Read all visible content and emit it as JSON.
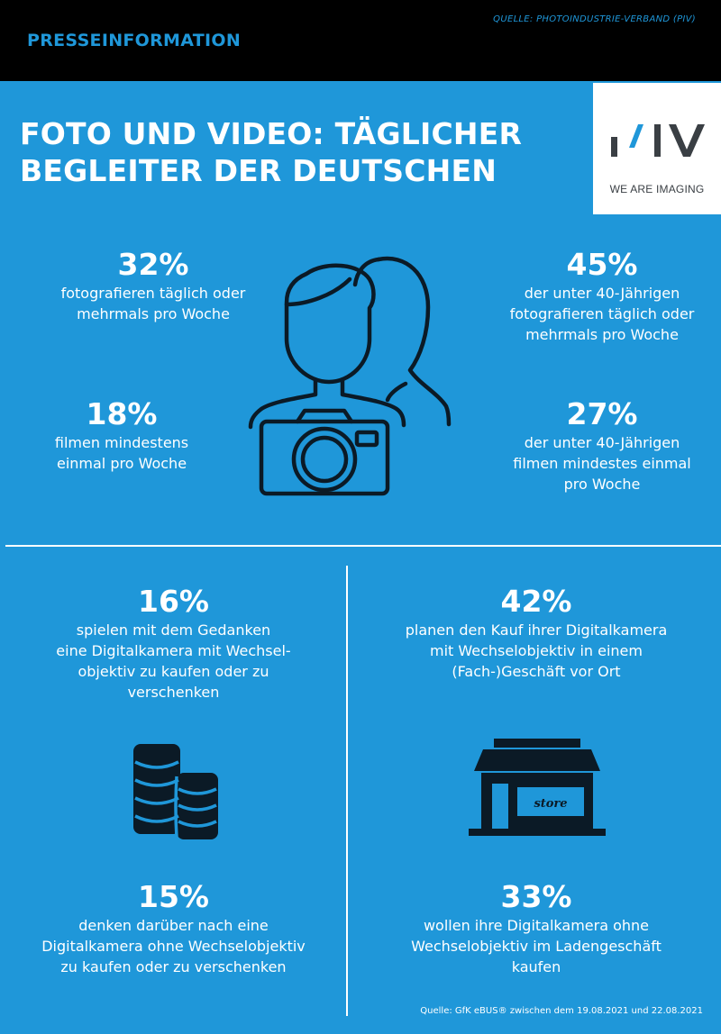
{
  "header": {
    "title": "PRESSEINFORMATION",
    "source": "QUELLE: PHOTOINDUSTRIE-VERBAND (PIV)"
  },
  "headline": {
    "line1": "FOTO UND VIDEO: TÄGLICHER",
    "line2": "BEGLEITER DER DEUTSCHEN"
  },
  "logo": {
    "mark": "PIV",
    "tagline": "WE ARE IMAGING"
  },
  "top_stats": [
    {
      "value": "32%",
      "lines": [
        "fotografieren täglich oder",
        "mehrmals pro Woche"
      ]
    },
    {
      "value": "45%",
      "lines": [
        "der unter 40-Jährigen",
        "fotografieren täglich oder",
        "mehrmals pro Woche"
      ]
    },
    {
      "value": "18%",
      "lines": [
        "filmen mindestens",
        "einmal pro Woche"
      ]
    },
    {
      "value": "27%",
      "lines": [
        "der unter 40-Jährigen",
        "filmen mindestes einmal",
        "pro Woche"
      ]
    }
  ],
  "bottom_stats": [
    {
      "value": "16%",
      "lines": [
        "spielen mit dem Gedanken",
        "eine Digitalkamera mit Wechsel-",
        "objektiv zu kaufen oder zu",
        "verschenken"
      ]
    },
    {
      "value": "42%",
      "lines": [
        "planen den Kauf ihrer Digitalkamera",
        "mit Wechselobjektiv in einem",
        "(Fach-)Geschäft vor Ort"
      ]
    },
    {
      "value": "15%",
      "lines": [
        "denken darüber nach eine",
        "Digitalkamera ohne Wechselobjektiv",
        "zu kaufen oder zu verschenken"
      ]
    },
    {
      "value": "33%",
      "lines": [
        "wollen ihre Digitalkamera ohne",
        "Wechselobjektiv im Ladengeschäft",
        "kaufen"
      ]
    }
  ],
  "icons": {
    "people_camera": "people-with-camera-icon",
    "coins": "coin-stacks-icon",
    "store": "store-icon",
    "store_sign": "store"
  },
  "footer": {
    "source": "Quelle: GfK eBUS® zwischen dem 19.08.2021 und 22.08.2021"
  },
  "colors": {
    "background": "#1f97d9",
    "header_bar": "#000000",
    "accent": "#1f97d9",
    "icon": "#0b1a26",
    "logo_gray": "#3a3f44"
  }
}
